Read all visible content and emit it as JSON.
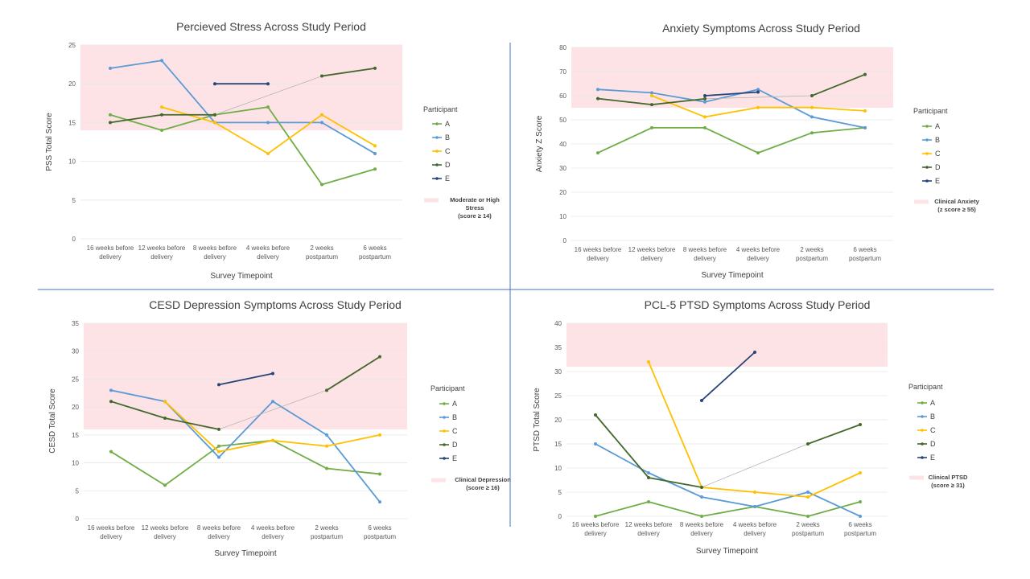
{
  "colors": {
    "A": "#70ad47",
    "B": "#5b9bd5",
    "C": "#ffc000",
    "D": "#43682b",
    "E": "#264478",
    "band": "#fde3e6",
    "divider": "#4472c4",
    "grid": "#e6e6e6",
    "connector": "#b0b0b0"
  },
  "chart_data": [
    {
      "type": "line",
      "title": "Percieved Stress Across Study Period",
      "xlabel": "Survey Timepoint",
      "ylabel": "PSS Total Score",
      "ylim": [
        0,
        25
      ],
      "yticks": [
        0,
        5,
        10,
        15,
        20,
        25
      ],
      "categories": [
        "16 weeks before delivery",
        "12 weeks before delivery",
        "8 weeks before delivery",
        "4 weeks before delivery",
        "2 weeks postpartum",
        "6 weeks postpartum"
      ],
      "legend_title": "Participant",
      "band": {
        "from": 14,
        "to": 25,
        "label": [
          "Moderate or High",
          "Stress",
          "(score ≥ 14)"
        ]
      },
      "series": [
        {
          "name": "A",
          "values": [
            16,
            14,
            16,
            17,
            7,
            9
          ]
        },
        {
          "name": "B",
          "values": [
            22,
            23,
            15,
            15,
            15,
            11
          ]
        },
        {
          "name": "C",
          "values": [
            null,
            17,
            15,
            11,
            16,
            12
          ]
        },
        {
          "name": "D",
          "values": [
            15,
            16,
            16,
            null,
            21,
            22
          ]
        },
        {
          "name": "E",
          "values": [
            null,
            null,
            20,
            20,
            null,
            null
          ]
        }
      ]
    },
    {
      "type": "line",
      "title": "Anxiety Symptoms Across Study Period",
      "xlabel": "Survey Timepoint",
      "ylabel": "Anxiety Z Score",
      "ylim": [
        0,
        80
      ],
      "yticks": [
        0,
        10,
        20,
        30,
        40,
        50,
        60,
        70,
        80
      ],
      "categories": [
        "16 weeks before delivery",
        "12 weeks before delivery",
        "8 weeks before delivery",
        "4 weeks before delivery",
        "2 weeks postpartum",
        "6 weeks postpartum"
      ],
      "legend_title": "Participant",
      "band": {
        "from": 55,
        "to": 80,
        "label": [
          "Clinical Anxiety",
          "(z score ≥ 55)"
        ]
      },
      "series": [
        {
          "name": "A",
          "values": [
            36.3,
            46.7,
            46.7,
            36.3,
            44.6,
            46.7
          ]
        },
        {
          "name": "B",
          "values": [
            62.6,
            61.2,
            57.4,
            62.6,
            51.2,
            46.7
          ]
        },
        {
          "name": "C",
          "values": [
            null,
            60.0,
            51.2,
            55.1,
            55.1,
            53.7
          ]
        },
        {
          "name": "D",
          "values": [
            58.8,
            56.3,
            58.7,
            null,
            60.0,
            68.8
          ]
        },
        {
          "name": "E",
          "values": [
            null,
            null,
            60.0,
            61.5,
            null,
            null
          ]
        }
      ]
    },
    {
      "type": "line",
      "title": "CESD Depression Symptoms Across Study Period",
      "xlabel": "Survey Timepoint",
      "ylabel": "CESD Total Score",
      "ylim": [
        0,
        35
      ],
      "yticks": [
        0,
        5,
        10,
        15,
        20,
        25,
        30,
        35
      ],
      "categories": [
        "16 weeks before delivery",
        "12 weeks before delivery",
        "8 weeks before delivery",
        "4 weeks before delivery",
        "2 weeks postpartum",
        "6 weeks postpartum"
      ],
      "legend_title": "Participant",
      "band": {
        "from": 16,
        "to": 35,
        "label": [
          "Clinical Depression",
          "(score ≥ 16)"
        ]
      },
      "series": [
        {
          "name": "A",
          "values": [
            12,
            6,
            13,
            14,
            9,
            8
          ]
        },
        {
          "name": "B",
          "values": [
            23,
            21,
            11,
            21,
            15,
            3
          ]
        },
        {
          "name": "C",
          "values": [
            null,
            21,
            12,
            14,
            13,
            15
          ]
        },
        {
          "name": "D",
          "values": [
            21,
            18,
            16,
            null,
            23,
            29
          ]
        },
        {
          "name": "E",
          "values": [
            null,
            null,
            24,
            26,
            null,
            null
          ]
        }
      ]
    },
    {
      "type": "line",
      "title": "PCL-5 PTSD Symptoms Across Study Period",
      "xlabel": "Survey Timepoint",
      "ylabel": "PTSD Total Score",
      "ylim": [
        0,
        40
      ],
      "yticks": [
        0,
        5,
        10,
        15,
        20,
        25,
        30,
        35,
        40
      ],
      "categories": [
        "16 weeks before delivery",
        "12 weeks before delivery",
        "8 weeks before delivery",
        "4 weeks before delivery",
        "2 weeks postpartum",
        "6 weeks postpartum"
      ],
      "legend_title": "Participant",
      "band": {
        "from": 31,
        "to": 40,
        "label": [
          "Clinical PTSD",
          "(score ≥ 31)"
        ]
      },
      "series": [
        {
          "name": "A",
          "values": [
            0,
            3,
            0,
            2,
            0,
            3
          ]
        },
        {
          "name": "B",
          "values": [
            15,
            9,
            4,
            2,
            5,
            0
          ]
        },
        {
          "name": "C",
          "values": [
            null,
            32,
            6,
            5,
            4,
            9
          ]
        },
        {
          "name": "D",
          "values": [
            21,
            8,
            6,
            null,
            15,
            19
          ]
        },
        {
          "name": "E",
          "values": [
            null,
            null,
            24,
            34,
            null,
            null
          ]
        }
      ]
    }
  ]
}
